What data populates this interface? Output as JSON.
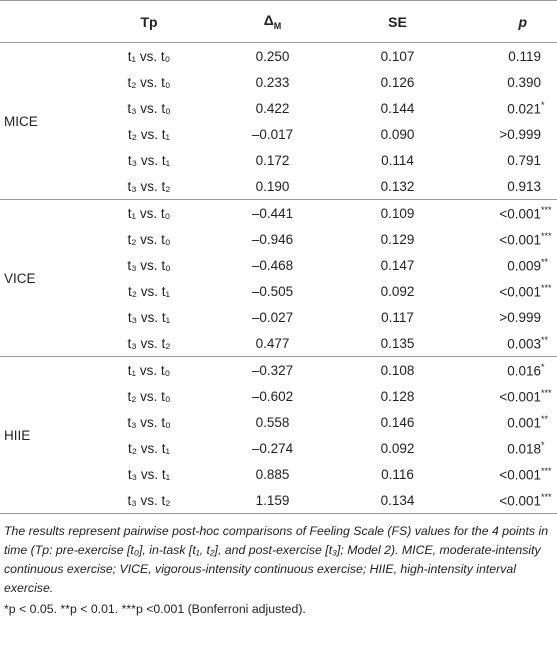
{
  "table": {
    "header": [
      "Tp",
      {
        "text": "Δ",
        "sub": "M"
      },
      "SE",
      "p"
    ],
    "groups": [
      {
        "label": "MICE",
        "rows": [
          [
            "t₁ vs. t₀",
            "0.250",
            "0.107",
            {
              "value": "0.119",
              "mark": ""
            }
          ],
          [
            "t₂ vs. t₀",
            "0.233",
            "0.126",
            {
              "value": "0.390",
              "mark": ""
            }
          ],
          [
            "t₃ vs. t₀",
            "0.422",
            "0.144",
            {
              "value": "0.021",
              "mark": "*"
            }
          ],
          [
            "t₂ vs. t₁",
            "–0.017",
            "0.090",
            {
              "value": ">0.999",
              "mark": ""
            }
          ],
          [
            "t₃ vs. t₁",
            "0.172",
            "0.114",
            {
              "value": "0.791",
              "mark": ""
            }
          ],
          [
            "t₃ vs. t₂",
            "0.190",
            "0.132",
            {
              "value": "0.913",
              "mark": ""
            }
          ]
        ]
      },
      {
        "label": "VICE",
        "rows": [
          [
            "t₁ vs. t₀",
            "–0.441",
            "0.109",
            {
              "value": "<0.001",
              "mark": "***"
            }
          ],
          [
            "t₂ vs. t₀",
            "–0.946",
            "0.129",
            {
              "value": "<0.001",
              "mark": "***"
            }
          ],
          [
            "t₃ vs. t₀",
            "–0.468",
            "0.147",
            {
              "value": "0.009",
              "mark": "**"
            }
          ],
          [
            "t₂ vs. t₁",
            "–0.505",
            "0.092",
            {
              "value": "<0.001",
              "mark": "***"
            }
          ],
          [
            "t₃ vs. t₁",
            "–0.027",
            "0.117",
            {
              "value": ">0.999",
              "mark": ""
            }
          ],
          [
            "t₃ vs. t₂",
            "0.477",
            "0.135",
            {
              "value": "0.003",
              "mark": "**"
            }
          ]
        ]
      },
      {
        "label": "HIIE",
        "rows": [
          [
            "t₁ vs. t₀",
            "–0.327",
            "0.108",
            {
              "value": "0.016",
              "mark": "*"
            }
          ],
          [
            "t₂ vs. t₀",
            "–0.602",
            "0.128",
            {
              "value": "<0.001",
              "mark": "***"
            }
          ],
          [
            "t₃ vs. t₀",
            "0.558",
            "0.146",
            {
              "value": "0.001",
              "mark": "**"
            }
          ],
          [
            "t₂ vs. t₁",
            "–0.274",
            "0.092",
            {
              "value": "0.018",
              "mark": "*"
            }
          ],
          [
            "t₃ vs. t₁",
            "0.885",
            "0.116",
            {
              "value": "<0.001",
              "mark": "***"
            }
          ],
          [
            "t₃ vs. t₂",
            "1.159",
            "0.134",
            {
              "value": "<0.001",
              "mark": "***"
            }
          ]
        ]
      }
    ],
    "notes": [
      "The results represent pairwise post-hoc comparisons of Feeling Scale (FS) values for the 4 points in time (Tp: pre-exercise [t₀], in-task [t₁, t₂], and post-exercise [t₃]; Model 2). MICE, moderate-intensity continuous exercise; VICE, vigorous-intensity continuous exercise; HIIE, high-intensity interval exercise.",
      "*p < 0.05. **p < 0.01. ***p <0.001 (Bonferroni adjusted)."
    ]
  }
}
